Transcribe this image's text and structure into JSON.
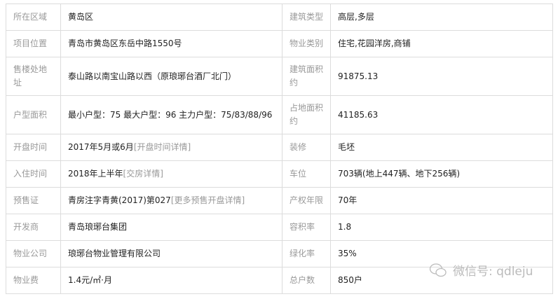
{
  "rows": [
    {
      "l1": "所在区域",
      "v1": "黄岛区",
      "l2": "建筑类型",
      "v2": "高层,多层"
    },
    {
      "l1": "项目位置",
      "v1": "青岛市黄岛区东岳中路1550号",
      "l2": "物业类别",
      "v2": "住宅,花园洋房,商铺"
    },
    {
      "l1": "售楼处地址",
      "v1": "泰山路以南宝山路以西（原琅琊台酒厂北门）",
      "l2": "建筑面积约",
      "v2": "91875.13"
    },
    {
      "l1": "户型面积",
      "v1": "最小户型：75 最大户型：96 主力户型：75/83/88/96",
      "l2": "占地面积约",
      "v2": "41185.63"
    },
    {
      "l1": "开盘时间",
      "v1": "2017年5月或6月",
      "link1": "[开盘时间详情]",
      "l2": "装修",
      "v2": "毛坯"
    },
    {
      "l1": "入住时间",
      "v1": "2018年上半年",
      "link1": "[交房详情]",
      "l2": "车位",
      "v2": "703辆(地上447辆、地下256辆)"
    },
    {
      "l1": "预售证",
      "v1": "青房注字青黄(2017)第027",
      "link1": "[更多预售开盘详情]",
      "l2": "产权年限",
      "v2": "70年"
    },
    {
      "l1": "开发商",
      "v1": "青岛琅琊台集团",
      "l2": "容积率",
      "v2": "1.8"
    },
    {
      "l1": "物业公司",
      "v1": "琅琊台物业管理有限公司",
      "l2": "绿化率",
      "v2": "35%"
    },
    {
      "l1": "物业费",
      "v1": "1.4元/㎡·月",
      "l2": "总户数",
      "v2": "850户"
    }
  ],
  "watermark": {
    "icon": "wechat-icon",
    "text": "微信号: qdleju"
  }
}
